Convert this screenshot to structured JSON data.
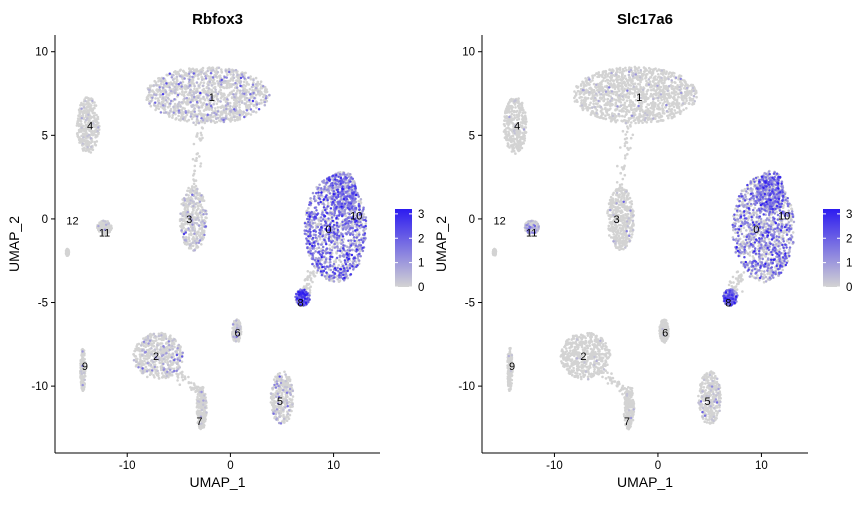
{
  "colors": {
    "low": "#d3d3d3",
    "high": "#2c1bf0",
    "text": "#000000"
  },
  "chart_data": [
    {
      "type": "scatter",
      "title": "Rbfox3",
      "xlabel": "UMAP_1",
      "ylabel": "UMAP_2",
      "xlim": [
        -17,
        14.5
      ],
      "ylim": [
        -14,
        11
      ],
      "xticks": [
        -10,
        0,
        10
      ],
      "yticks": [
        -10,
        -5,
        0,
        5,
        10
      ],
      "xtick_labels": [
        "-10",
        "0",
        "10"
      ],
      "ytick_labels": [
        "-10",
        "-5",
        "0",
        "5",
        "10"
      ],
      "legend": {
        "placement": "right",
        "ticks": [
          0,
          1,
          2,
          3
        ],
        "tick_labels": [
          "0",
          "1",
          "2",
          "3"
        ],
        "range": [
          0,
          3.2
        ]
      },
      "cluster_labels": [
        {
          "label": "0",
          "x": 9.5,
          "y": -0.6
        },
        {
          "label": "1",
          "x": -1.8,
          "y": 7.3
        },
        {
          "label": "2",
          "x": -7.2,
          "y": -8.2
        },
        {
          "label": "3",
          "x": -4.0,
          "y": 0.0
        },
        {
          "label": "4",
          "x": -13.6,
          "y": 5.6
        },
        {
          "label": "5",
          "x": 4.8,
          "y": -10.9
        },
        {
          "label": "6",
          "x": 0.7,
          "y": -6.8
        },
        {
          "label": "7",
          "x": -3.0,
          "y": -12.1
        },
        {
          "label": "8",
          "x": 6.8,
          "y": -5.0
        },
        {
          "label": "9",
          "x": -14.1,
          "y": -8.8
        },
        {
          "label": "10",
          "x": 12.2,
          "y": 0.2
        },
        {
          "label": "11",
          "x": -12.2,
          "y": -0.8
        },
        {
          "label": "12",
          "x": -15.3,
          "y": -0.1
        }
      ],
      "clusters": [
        {
          "id": "0",
          "cx": 10.2,
          "cy": -0.6,
          "rx": 3.0,
          "ry": 3.2,
          "mean_expr": 1.6
        },
        {
          "id": "10",
          "cx": 10.9,
          "cy": 1.6,
          "rx": 1.3,
          "ry": 1.3,
          "mean_expr": 1.3
        },
        {
          "id": "8",
          "cx": 7.0,
          "cy": -4.7,
          "rx": 0.7,
          "ry": 0.5,
          "mean_expr": 2.0
        },
        {
          "id": "1",
          "cx": -2.2,
          "cy": 7.4,
          "rx": 6.0,
          "ry": 1.7,
          "mean_expr": 0.5
        },
        {
          "id": "3",
          "cx": -3.6,
          "cy": 0.0,
          "rx": 1.3,
          "ry": 1.9,
          "mean_expr": 0.4
        },
        {
          "id": "2",
          "cx": -7.0,
          "cy": -8.2,
          "rx": 2.4,
          "ry": 1.4,
          "mean_expr": 0.4
        },
        {
          "id": "4",
          "cx": -13.8,
          "cy": 5.6,
          "rx": 1.1,
          "ry": 1.7,
          "mean_expr": 0.15
        },
        {
          "id": "5",
          "cx": 5.0,
          "cy": -10.7,
          "rx": 1.1,
          "ry": 1.6,
          "mean_expr": 0.3
        },
        {
          "id": "6",
          "cx": 0.6,
          "cy": -6.7,
          "rx": 0.45,
          "ry": 0.7,
          "mean_expr": 0.3
        },
        {
          "id": "7",
          "cx": -2.8,
          "cy": -11.3,
          "rx": 0.5,
          "ry": 1.3,
          "mean_expr": 0.2
        },
        {
          "id": "9",
          "cx": -14.3,
          "cy": -9.0,
          "rx": 0.25,
          "ry": 1.3,
          "mean_expr": 0.1
        },
        {
          "id": "11",
          "cx": -12.2,
          "cy": -0.5,
          "rx": 0.7,
          "ry": 0.4,
          "mean_expr": 0.1
        },
        {
          "id": "12",
          "cx": -15.8,
          "cy": -2.0,
          "rx": 0.15,
          "ry": 0.2,
          "mean_expr": 0.0
        }
      ]
    },
    {
      "type": "scatter",
      "title": "Slc17a6",
      "xlabel": "UMAP_1",
      "ylabel": "UMAP_2",
      "xlim": [
        -17,
        14.5
      ],
      "ylim": [
        -14,
        11
      ],
      "xticks": [
        -10,
        0,
        10
      ],
      "yticks": [
        -10,
        -5,
        0,
        5,
        10
      ],
      "xtick_labels": [
        "-10",
        "0",
        "10"
      ],
      "ytick_labels": [
        "-10",
        "-5",
        "0",
        "5",
        "10"
      ],
      "legend": {
        "placement": "right",
        "ticks": [
          0,
          1,
          2,
          3
        ],
        "tick_labels": [
          "0",
          "1",
          "2",
          "3"
        ],
        "range": [
          0,
          3.2
        ]
      },
      "cluster_labels": [
        {
          "label": "0",
          "x": 9.5,
          "y": -0.6
        },
        {
          "label": "1",
          "x": -1.8,
          "y": 7.3
        },
        {
          "label": "2",
          "x": -7.2,
          "y": -8.2
        },
        {
          "label": "3",
          "x": -4.0,
          "y": 0.0
        },
        {
          "label": "4",
          "x": -13.6,
          "y": 5.6
        },
        {
          "label": "5",
          "x": 4.8,
          "y": -10.9
        },
        {
          "label": "6",
          "x": 0.7,
          "y": -6.8
        },
        {
          "label": "7",
          "x": -3.0,
          "y": -12.1
        },
        {
          "label": "8",
          "x": 6.8,
          "y": -5.0
        },
        {
          "label": "9",
          "x": -14.1,
          "y": -8.8
        },
        {
          "label": "10",
          "x": 12.2,
          "y": 0.2
        },
        {
          "label": "11",
          "x": -12.2,
          "y": -0.8
        },
        {
          "label": "12",
          "x": -15.3,
          "y": -0.1
        }
      ],
      "clusters": [
        {
          "id": "0",
          "cx": 10.2,
          "cy": -0.6,
          "rx": 3.0,
          "ry": 3.2,
          "mean_expr": 1.4
        },
        {
          "id": "10",
          "cx": 10.9,
          "cy": 1.6,
          "rx": 1.3,
          "ry": 1.3,
          "mean_expr": 1.7
        },
        {
          "id": "8",
          "cx": 7.0,
          "cy": -4.7,
          "rx": 0.7,
          "ry": 0.5,
          "mean_expr": 1.9
        },
        {
          "id": "1",
          "cx": -2.2,
          "cy": 7.4,
          "rx": 6.0,
          "ry": 1.7,
          "mean_expr": 0.15
        },
        {
          "id": "3",
          "cx": -3.6,
          "cy": 0.0,
          "rx": 1.3,
          "ry": 1.9,
          "mean_expr": 0.1
        },
        {
          "id": "2",
          "cx": -7.0,
          "cy": -8.2,
          "rx": 2.4,
          "ry": 1.4,
          "mean_expr": 0.05
        },
        {
          "id": "4",
          "cx": -13.8,
          "cy": 5.6,
          "rx": 1.1,
          "ry": 1.7,
          "mean_expr": 0.05
        },
        {
          "id": "5",
          "cx": 5.0,
          "cy": -10.7,
          "rx": 1.1,
          "ry": 1.6,
          "mean_expr": 0.3
        },
        {
          "id": "6",
          "cx": 0.6,
          "cy": -6.7,
          "rx": 0.45,
          "ry": 0.7,
          "mean_expr": 0.05
        },
        {
          "id": "7",
          "cx": -2.8,
          "cy": -11.3,
          "rx": 0.5,
          "ry": 1.3,
          "mean_expr": 0.05
        },
        {
          "id": "9",
          "cx": -14.3,
          "cy": -9.0,
          "rx": 0.25,
          "ry": 1.3,
          "mean_expr": 0.05
        },
        {
          "id": "11",
          "cx": -12.2,
          "cy": -0.5,
          "rx": 0.7,
          "ry": 0.4,
          "mean_expr": 0.6
        },
        {
          "id": "12",
          "cx": -15.8,
          "cy": -2.0,
          "rx": 0.15,
          "ry": 0.2,
          "mean_expr": 0.0
        }
      ]
    }
  ]
}
